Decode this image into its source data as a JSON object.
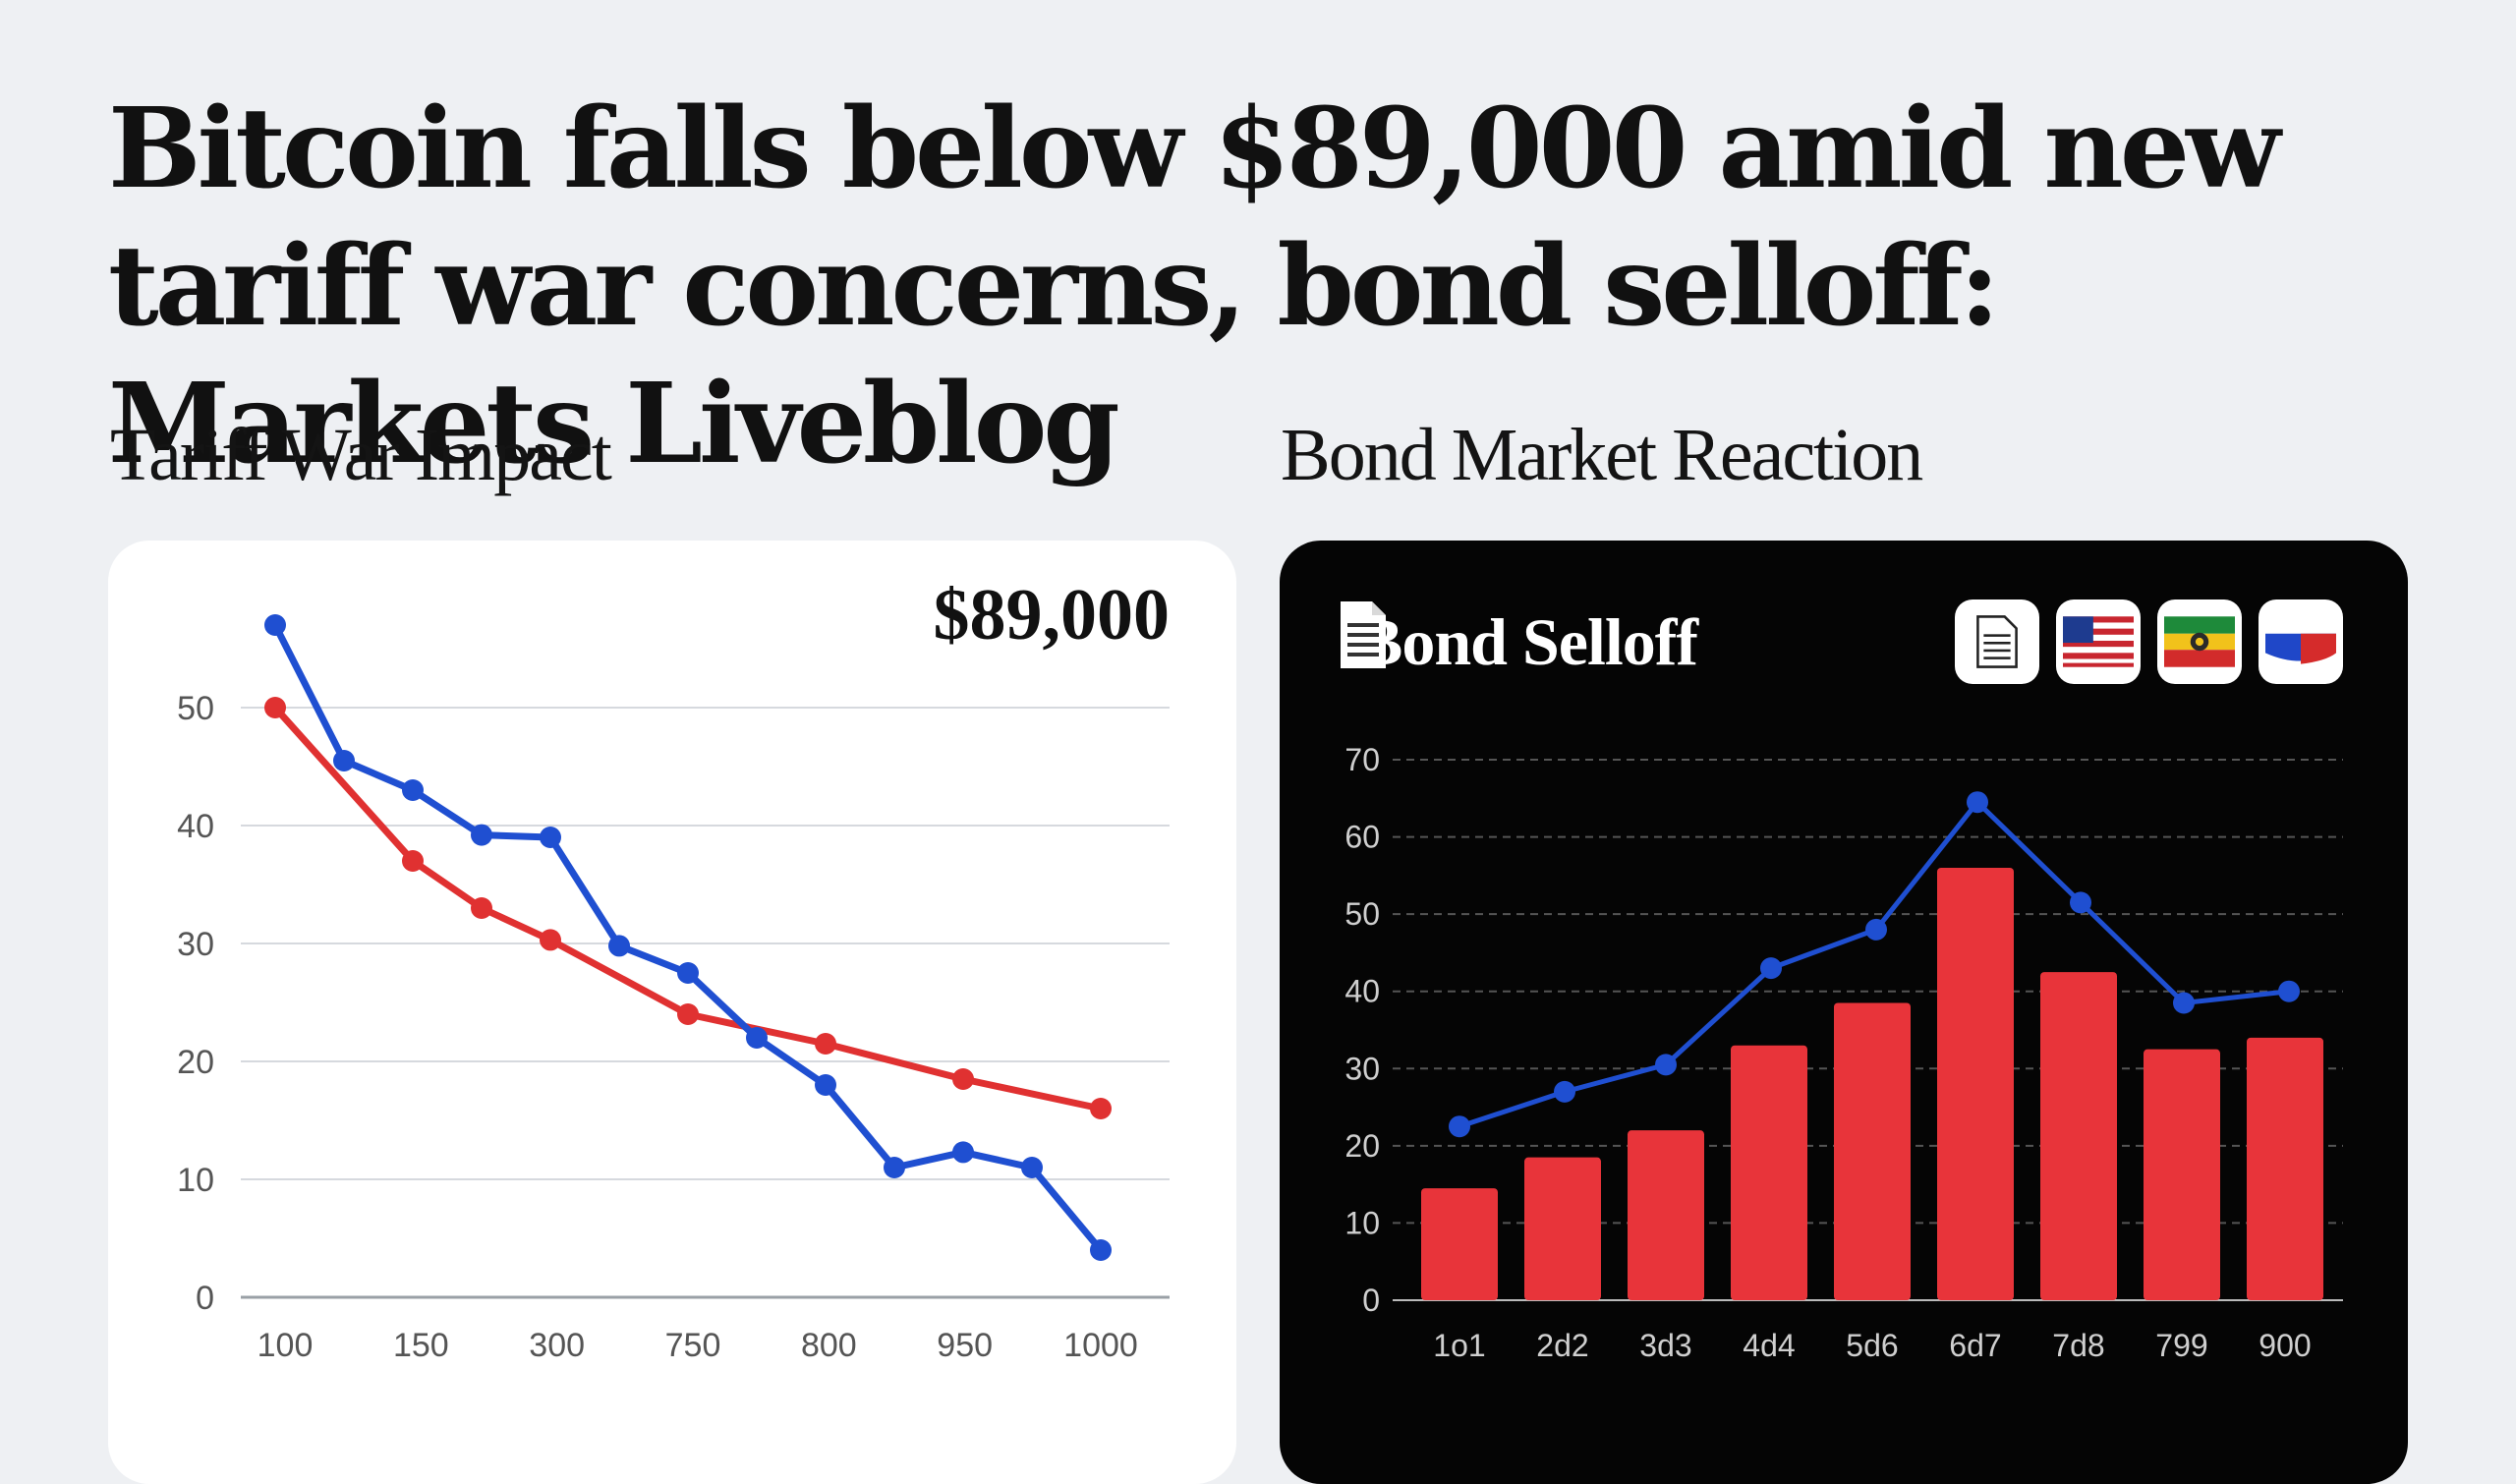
{
  "headline": "Bitcoin falls below $89,000 amid new tariff war concerns, bond selloff: Markets Liveblog",
  "sections": {
    "left_title": "Tariff War Impact",
    "right_title": "Bond Market Reaction"
  },
  "right_card": {
    "title": "Bond Selloff",
    "icons": [
      "document-icon",
      "us-flag-icon",
      "flag-icon",
      "flag-icon"
    ]
  },
  "colors": {
    "blue": "#1f4fd1",
    "red": "#e03131",
    "bar_red": "#e8343a"
  },
  "chart_data": [
    {
      "type": "line",
      "annotation": "$89,000",
      "x": [
        100,
        150,
        300,
        750,
        800,
        950,
        1000
      ],
      "x_tick_labels": [
        "100",
        "150",
        "300",
        "750",
        "800",
        "950",
        "1000"
      ],
      "y_ticks": [
        0,
        10,
        20,
        30,
        40,
        50
      ],
      "ylim": [
        0,
        60
      ],
      "grid": true,
      "series": [
        {
          "color": "#1f4fd1",
          "points": [
            [
              100,
              57
            ],
            [
              125,
              45.5
            ],
            [
              150,
              43
            ],
            [
              175,
              39.2
            ],
            [
              200,
              39
            ],
            [
              225,
              29.8
            ],
            [
              250,
              27.5
            ],
            [
              275,
              22
            ],
            [
              300,
              18
            ],
            [
              325,
              11
            ],
            [
              350,
              12.3
            ],
            [
              375,
              11
            ],
            [
              400,
              4
            ]
          ]
        },
        {
          "color": "#e03131",
          "points": [
            [
              100,
              50
            ],
            [
              150,
              37
            ],
            [
              175,
              33
            ],
            [
              200,
              30.3
            ],
            [
              250,
              24
            ],
            [
              300,
              21.5
            ],
            [
              350,
              18.5
            ],
            [
              400,
              16
            ]
          ]
        }
      ]
    },
    {
      "type": "bar",
      "categories": [
        "1o1",
        "2d2",
        "3d3",
        "4d4",
        "5d6",
        "6d7",
        "7d8",
        "799",
        "900"
      ],
      "y_ticks": [
        0,
        10,
        20,
        30,
        40,
        50,
        60,
        70
      ],
      "ylim": [
        0,
        70
      ],
      "grid": true,
      "series": [
        {
          "type": "bar",
          "color": "#e8343a",
          "values": [
            14.5,
            18.5,
            22,
            33,
            38.5,
            56,
            42.5,
            32.5,
            34
          ]
        },
        {
          "type": "line",
          "color": "#1f4fd1",
          "values": [
            22.5,
            27,
            30.5,
            43,
            48,
            64.5,
            51.5,
            38.5,
            40
          ]
        }
      ]
    }
  ]
}
